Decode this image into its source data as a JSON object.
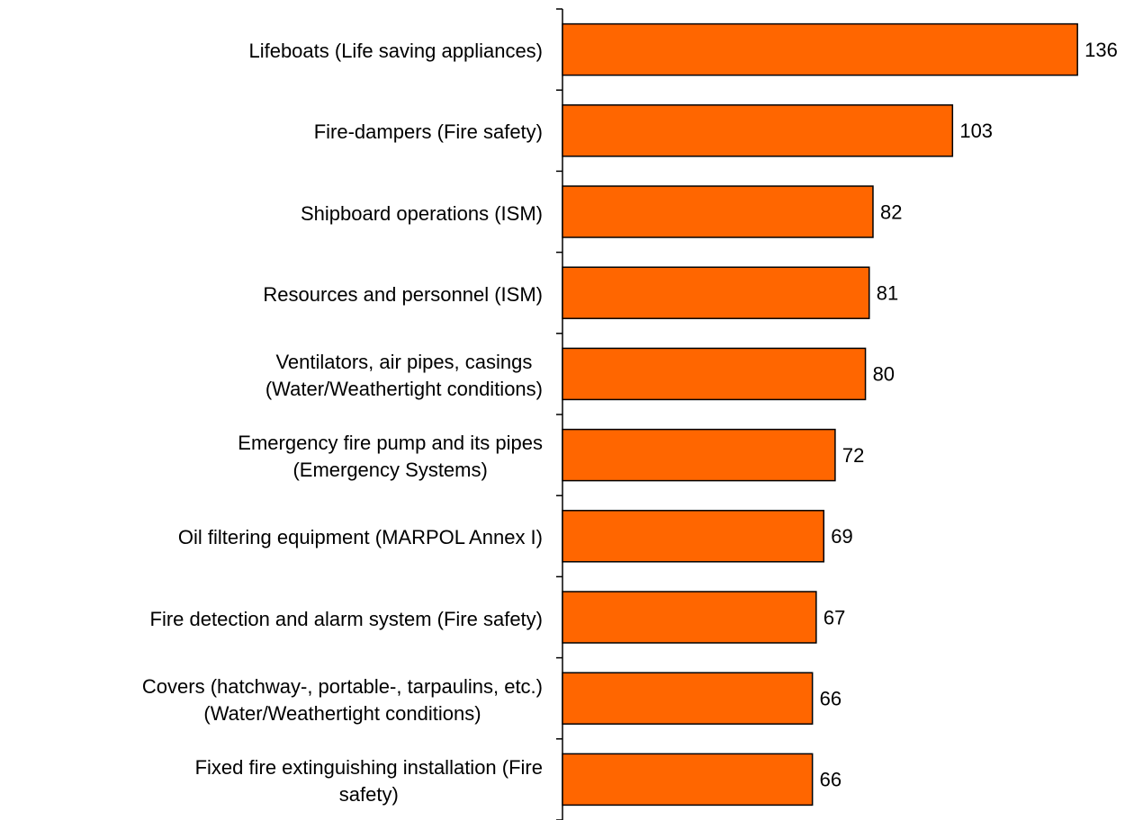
{
  "chart_data": {
    "type": "bar",
    "orientation": "horizontal",
    "categories": [
      "Lifeboats (Life saving appliances)",
      "Fire-dampers (Fire safety)",
      "Shipboard operations (ISM)",
      "Resources and personnel (ISM)",
      "Ventilators, air pipes, casings\n(Water/Weathertight conditions)",
      "Emergency fire pump and its pipes\n(Emergency Systems)",
      "Oil filtering equipment (MARPOL Annex I)",
      "Fire detection and alarm system (Fire safety)",
      "Covers (hatchway-, portable-, tarpaulins, etc.)\n(Water/Weathertight conditions)",
      "Fixed fire extinguishing installation (Fire\nsafety)"
    ],
    "values": [
      136,
      103,
      82,
      81,
      80,
      72,
      69,
      67,
      66,
      66
    ],
    "color": "#ff6600",
    "xlim": [
      0,
      140
    ]
  }
}
